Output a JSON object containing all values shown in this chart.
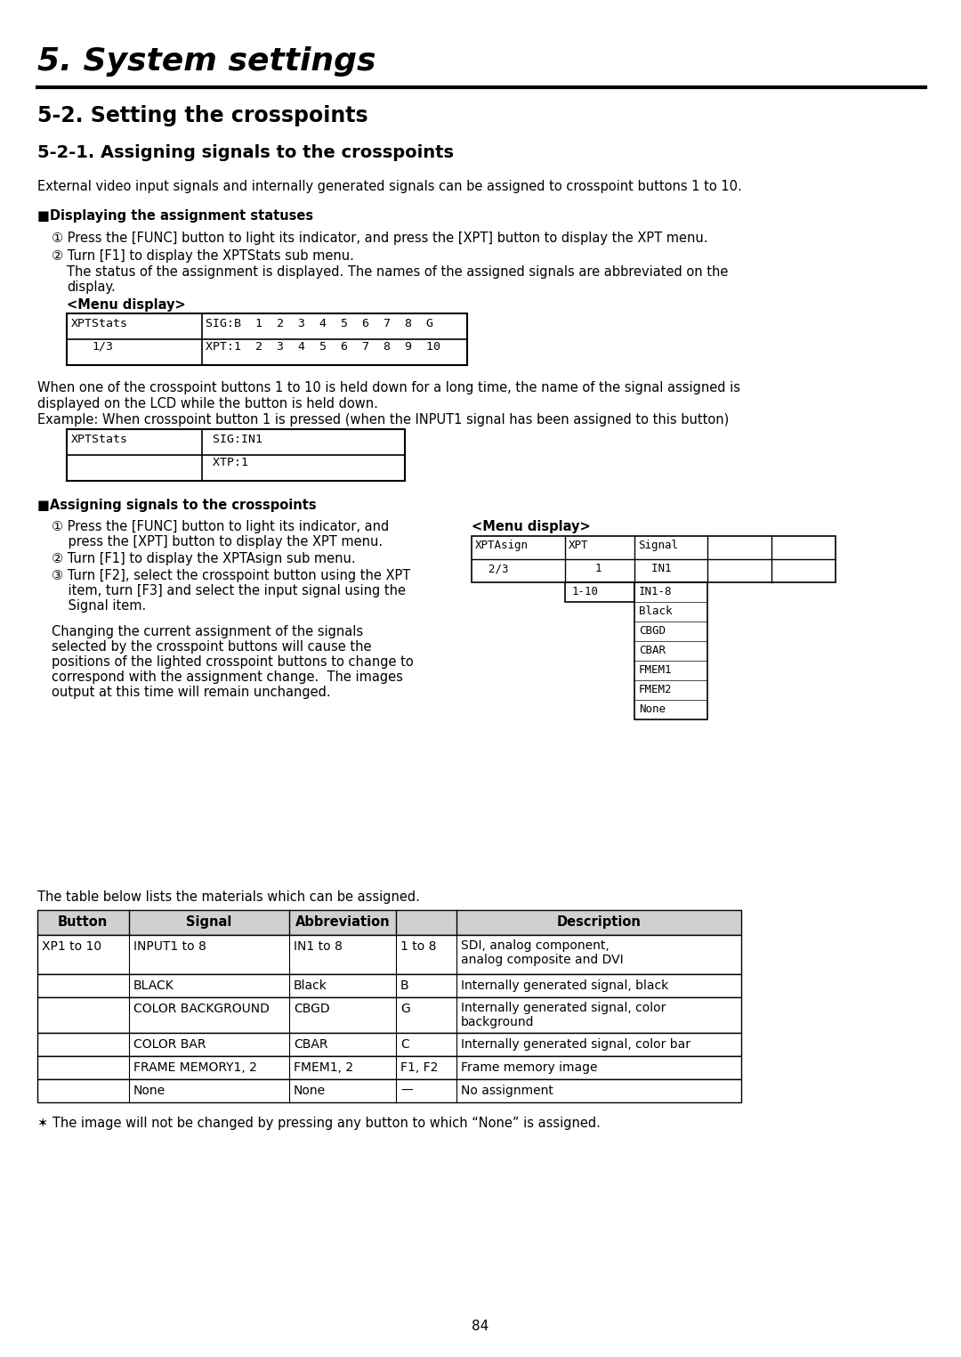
{
  "bg_color": "#ffffff",
  "page_number": "84",
  "title": "5. System settings",
  "h2": "5-2. Setting the crosspoints",
  "h3": "5-2-1. Assigning signals to the crosspoints",
  "intro_text": "External video input signals and internally generated signals can be assigned to crosspoint buttons 1 to 10.",
  "section1_head": "■Displaying the assignment statuses",
  "step1_1": "① Press the [FUNC] button to light its indicator, and press the [XPT] button to display the XPT menu.",
  "step1_2": "② Turn [F1] to display the XPTStats sub menu.",
  "step1_2b_1": "The status of the assignment is displayed. The names of the assigned signals are abbreviated on the",
  "step1_2b_2": "display.",
  "menu_display1": "<Menu display>",
  "para_held_1": "When one of the crosspoint buttons 1 to 10 is held down for a long time, the name of the signal assigned is",
  "para_held_2": "displayed on the LCD while the button is held down.",
  "para_held_3": "Example: When crosspoint button 1 is pressed (when the INPUT1 signal has been assigned to this button)",
  "section2_head": "■Assigning signals to the crosspoints",
  "step2_1a": "① Press the [FUNC] button to light its indicator, and",
  "step2_1b": "    press the [XPT] button to display the XPT menu.",
  "step2_2": "② Turn [F1] to display the XPTAsign sub menu.",
  "step2_3a": "③ Turn [F2], select the crosspoint button using the XPT",
  "step2_3b": "    item, turn [F3] and select the input signal using the",
  "step2_3c": "    Signal item.",
  "step2_note_1": "Changing the current assignment of the signals",
  "step2_note_2": "selected by the crosspoint buttons will cause the",
  "step2_note_3": "positions of the lighted crosspoint buttons to change to",
  "step2_note_4": "correspond with the assignment change.  The images",
  "step2_note_5": "output at this time will remain unchanged.",
  "menu_display2": "<Menu display>",
  "lcd3_dropdown_label": "1-10",
  "lcd3_dropdown_items": [
    "IN1-8",
    "Black",
    "CBGD",
    "CBAR",
    "FMEM1",
    "FMEM2",
    "None"
  ],
  "table_intro": "The table below lists the materials which can be assigned.",
  "table_headers": [
    "Button",
    "Signal",
    "Abbreviation",
    "",
    "Description"
  ],
  "table_rows": [
    [
      "XP1 to 10",
      "INPUT1 to 8",
      "IN1 to 8",
      "1 to 8",
      "SDI, analog component,\nanalog composite and DVI"
    ],
    [
      "",
      "BLACK",
      "Black",
      "B",
      "Internally generated signal, black"
    ],
    [
      "",
      "COLOR BACKGROUND",
      "CBGD",
      "G",
      "Internally generated signal, color\nbackground"
    ],
    [
      "",
      "COLOR BAR",
      "CBAR",
      "C",
      "Internally generated signal, color bar"
    ],
    [
      "",
      "FRAME MEMORY1, 2",
      "FMEM1, 2",
      "F1, F2",
      "Frame memory image"
    ],
    [
      "",
      "None",
      "None",
      "—",
      "No assignment"
    ]
  ],
  "footnote": "✶ The image will not be changed by pressing any button to which “None” is assigned."
}
